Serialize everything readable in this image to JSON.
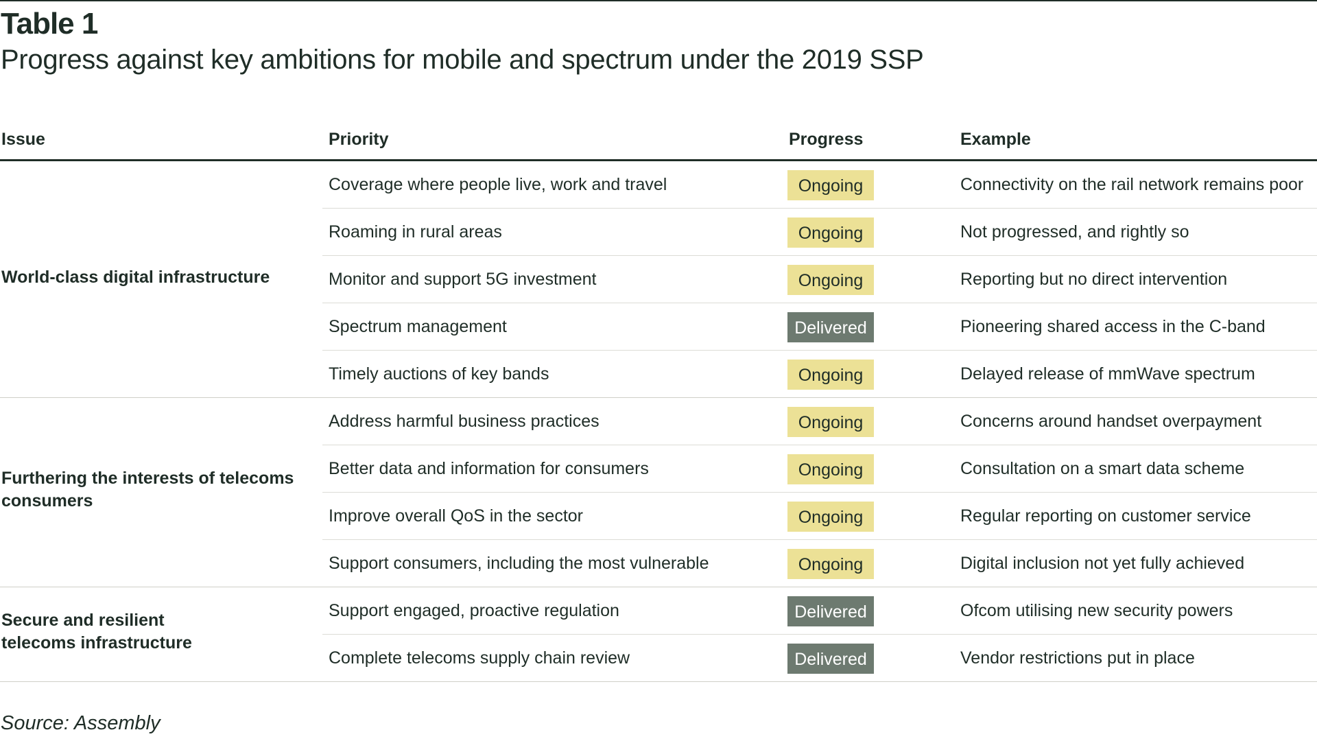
{
  "table": {
    "label": "Table 1",
    "title": "Progress against key ambitions for mobile and spectrum under the 2019 SSP",
    "columns": {
      "issue": "Issue",
      "priority": "Priority",
      "progress": "Progress",
      "example": "Example"
    },
    "groups": [
      {
        "issue_lines": [
          "World-class digital infrastructure"
        ]
      },
      {
        "issue_lines": [
          "Furthering the interests of telecoms",
          "consumers"
        ]
      },
      {
        "issue_lines": [
          "Secure and resilient",
          "telecoms infrastructure"
        ]
      }
    ],
    "rows": [
      {
        "priority": "Coverage where people live, work and travel",
        "progress": "Ongoing",
        "example": "Connectivity on the rail network remains poor"
      },
      {
        "priority": "Roaming in rural areas",
        "progress": "Ongoing",
        "example": "Not progressed, and rightly so"
      },
      {
        "priority": "Monitor and support 5G investment",
        "progress": "Ongoing",
        "example": "Reporting but no direct intervention"
      },
      {
        "priority": "Spectrum management",
        "progress": "Delivered",
        "example": "Pioneering shared access in the C-band"
      },
      {
        "priority": "Timely auctions of key bands",
        "progress": "Ongoing",
        "example": "Delayed release of mmWave spectrum"
      },
      {
        "priority": "Address harmful business practices",
        "progress": "Ongoing",
        "example": "Concerns around handset overpayment"
      },
      {
        "priority": "Better data and information for consumers",
        "progress": "Ongoing",
        "example": "Consultation on a smart data scheme"
      },
      {
        "priority": "Improve overall QoS in the sector",
        "progress": "Ongoing",
        "example": "Regular reporting on customer service"
      },
      {
        "priority": "Support consumers, including the most vulnerable",
        "progress": "Ongoing",
        "example": "Digital inclusion not yet fully achieved"
      },
      {
        "priority": "Support engaged, proactive regulation",
        "progress": "Delivered",
        "example": "Ofcom utilising new security powers"
      },
      {
        "priority": "Complete telecoms supply chain review",
        "progress": "Delivered",
        "example": "Vendor restrictions put in place"
      }
    ],
    "source": "Source: Assembly"
  },
  "colors": {
    "text": "#1f2d27",
    "ongoing": "#ece196",
    "delivered": "#6d7a70"
  }
}
